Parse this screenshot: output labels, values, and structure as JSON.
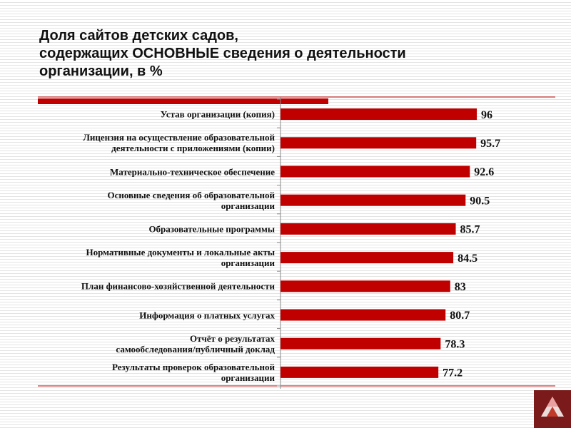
{
  "chart_data": {
    "type": "bar",
    "orientation": "horizontal",
    "title": "Доля сайтов детских садов,\nсодержащих ОСНОВНЫЕ сведения о деятельности\nорганизации, в %",
    "categories": [
      "Устав организации (копия)",
      "Лицензия на осуществление образовательной\nдеятельности с приложениями (копии)",
      "Материально-техническое обеспечение",
      "Основные сведения об образовательной\nорганизации",
      "Образовательные программы",
      "Нормативные документы и локальные акты\nорганизации",
      "План финансово-хозяйственной деятельности",
      "Информация о платных услугах",
      "Отчёт о результатах\nсамообследования/публичный доклад",
      "Результаты проверок образовательной\nорганизации"
    ],
    "values": [
      96,
      95.7,
      92.6,
      90.5,
      85.7,
      84.5,
      83,
      80.7,
      78.3,
      77.2
    ],
    "color": "#c00000",
    "xlim": [
      0,
      100
    ]
  }
}
